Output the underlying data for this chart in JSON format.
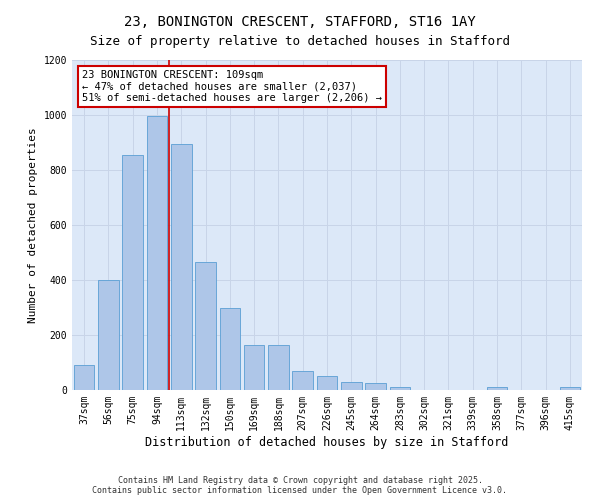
{
  "title": "23, BONINGTON CRESCENT, STAFFORD, ST16 1AY",
  "subtitle": "Size of property relative to detached houses in Stafford",
  "xlabel": "Distribution of detached houses by size in Stafford",
  "ylabel": "Number of detached properties",
  "categories": [
    "37sqm",
    "56sqm",
    "75sqm",
    "94sqm",
    "113sqm",
    "132sqm",
    "150sqm",
    "169sqm",
    "188sqm",
    "207sqm",
    "226sqm",
    "245sqm",
    "264sqm",
    "283sqm",
    "302sqm",
    "321sqm",
    "339sqm",
    "358sqm",
    "377sqm",
    "396sqm",
    "415sqm"
  ],
  "values": [
    90,
    400,
    855,
    995,
    895,
    465,
    300,
    165,
    165,
    70,
    50,
    30,
    25,
    10,
    0,
    0,
    0,
    10,
    0,
    0,
    10
  ],
  "bar_color": "#aec6e8",
  "bar_edge_color": "#5a9fd4",
  "vline_index": 4,
  "marker_label_line1": "23 BONINGTON CRESCENT: 109sqm",
  "marker_label_line2": "← 47% of detached houses are smaller (2,037)",
  "marker_label_line3": "51% of semi-detached houses are larger (2,206) →",
  "ylim": [
    0,
    1200
  ],
  "yticks": [
    0,
    200,
    400,
    600,
    800,
    1000,
    1200
  ],
  "grid_color": "#c8d4e8",
  "background_color": "#dce8f8",
  "annotation_box_edgecolor": "#cc0000",
  "vline_color": "#cc0000",
  "footer_line1": "Contains HM Land Registry data © Crown copyright and database right 2025.",
  "footer_line2": "Contains public sector information licensed under the Open Government Licence v3.0.",
  "title_fontsize": 10,
  "subtitle_fontsize": 9,
  "xlabel_fontsize": 8.5,
  "ylabel_fontsize": 8,
  "tick_fontsize": 7,
  "annotation_fontsize": 7.5,
  "footer_fontsize": 6
}
